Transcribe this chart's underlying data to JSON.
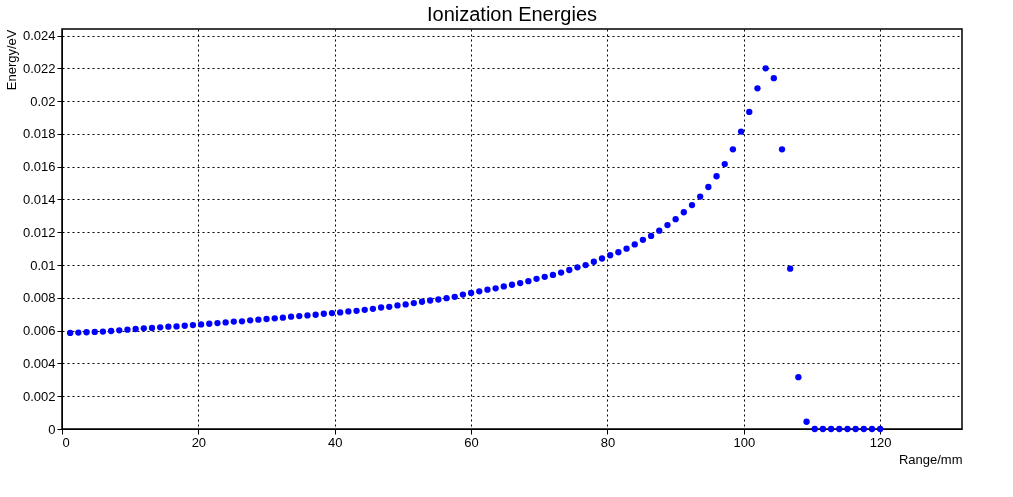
{
  "chart_data": {
    "type": "scatter",
    "title": "Ionization Energies",
    "xlabel": "Range/mm",
    "ylabel": "Energy/eV",
    "x": [
      1.2,
      2.4,
      3.6,
      4.8,
      6.0,
      7.2,
      8.4,
      9.6,
      10.8,
      12.0,
      13.2,
      14.4,
      15.6,
      16.8,
      18.0,
      19.2,
      20.4,
      21.6,
      22.8,
      24.0,
      25.2,
      26.4,
      27.6,
      28.8,
      30.0,
      31.2,
      32.4,
      33.6,
      34.8,
      36.0,
      37.2,
      38.4,
      39.6,
      40.8,
      42.0,
      43.2,
      44.4,
      45.6,
      46.8,
      48.0,
      49.2,
      50.4,
      51.6,
      52.8,
      54.0,
      55.2,
      56.4,
      57.6,
      58.8,
      60.0,
      61.2,
      62.4,
      63.6,
      64.8,
      66.0,
      67.2,
      68.4,
      69.6,
      70.8,
      72.0,
      73.2,
      74.4,
      75.6,
      76.8,
      78.0,
      79.2,
      80.4,
      81.6,
      82.8,
      84.0,
      85.2,
      86.4,
      87.6,
      88.8,
      90.0,
      91.2,
      92.4,
      93.6,
      94.8,
      96.0,
      97.2,
      98.4,
      99.6,
      100.8,
      102.0,
      103.2,
      104.4,
      105.6,
      106.8,
      108.0,
      109.2,
      110.4,
      111.6,
      112.8,
      114.0,
      115.2,
      116.4,
      117.6,
      118.8,
      120.0
    ],
    "series": [
      {
        "color": "#0000ff",
        "values": [
          0.00586,
          0.00588,
          0.0059,
          0.00592,
          0.00594,
          0.00598,
          0.00602,
          0.00606,
          0.0061,
          0.00614,
          0.00616,
          0.0062,
          0.00624,
          0.00626,
          0.0063,
          0.00634,
          0.00638,
          0.00642,
          0.00646,
          0.0065,
          0.00655,
          0.00657,
          0.00663,
          0.00667,
          0.00671,
          0.00675,
          0.00679,
          0.00685,
          0.00689,
          0.00693,
          0.00697,
          0.00703,
          0.00707,
          0.00711,
          0.00717,
          0.00721,
          0.00727,
          0.00733,
          0.00741,
          0.00745,
          0.00754,
          0.0076,
          0.00768,
          0.00776,
          0.00784,
          0.0079,
          0.00798,
          0.00806,
          0.0082,
          0.0083,
          0.0084,
          0.0085,
          0.00858,
          0.0087,
          0.0088,
          0.0089,
          0.00902,
          0.00916,
          0.00928,
          0.0094,
          0.00954,
          0.0097,
          0.00986,
          0.01,
          0.0102,
          0.0104,
          0.0106,
          0.01078,
          0.011,
          0.01126,
          0.01154,
          0.01178,
          0.0121,
          0.01244,
          0.0128,
          0.01322,
          0.01366,
          0.01418,
          0.01476,
          0.01542,
          0.01616,
          0.01706,
          0.01814,
          0.01934,
          0.02078,
          0.022,
          0.0214,
          0.01706,
          0.00978,
          0.00316,
          0.00044,
          0,
          0,
          0,
          0,
          0,
          0,
          0,
          0,
          0
        ]
      }
    ],
    "xlim": [
      0,
      132
    ],
    "xticks": [
      0,
      20,
      40,
      60,
      80,
      100,
      120
    ],
    "ylim": [
      0,
      0.0244
    ],
    "yticks": [
      0,
      0.002,
      0.004,
      0.006,
      0.008,
      0.01,
      0.012,
      0.014,
      0.016,
      0.018,
      0.02,
      0.022,
      0.024
    ],
    "grid": true,
    "marker": "circle",
    "legend": false
  }
}
